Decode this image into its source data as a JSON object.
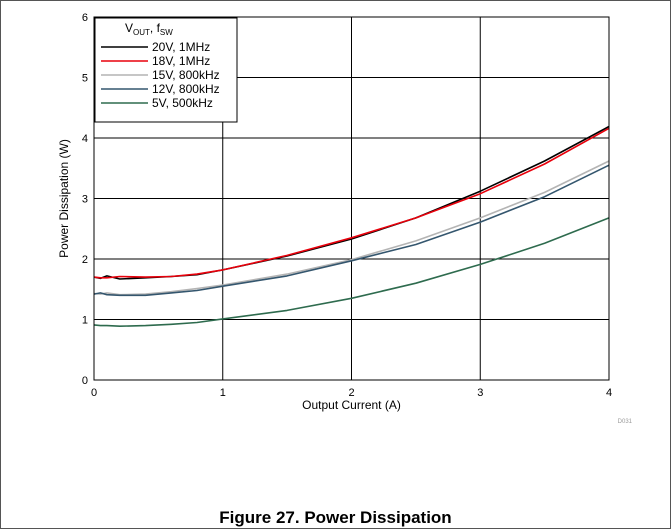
{
  "caption": "Figure 27. Power Dissipation",
  "chart_code": "D031",
  "chart_data": {
    "type": "line",
    "title": "",
    "xlabel": "Output Current (A)",
    "ylabel": "Power Dissipation (W)",
    "xlim": [
      0,
      4
    ],
    "ylim": [
      0,
      6
    ],
    "xticks": [
      "0",
      "1",
      "2",
      "3",
      "4"
    ],
    "yticks": [
      "0",
      "1",
      "2",
      "3",
      "4",
      "5",
      "6"
    ],
    "grid": true,
    "legend_position": "top-left",
    "legend_title": {
      "main": "V",
      "sub1": "OUT",
      "mid": ", f",
      "sub2": "SW"
    },
    "series": [
      {
        "name": "20V, 1MHz",
        "color": "#000000",
        "x": [
          0,
          0.05,
          0.1,
          0.2,
          0.4,
          0.6,
          0.8,
          1.0,
          1.5,
          2.0,
          2.5,
          3.0,
          3.5,
          4.0
        ],
        "y": [
          1.7,
          1.68,
          1.72,
          1.67,
          1.69,
          1.71,
          1.74,
          1.82,
          2.05,
          2.33,
          2.68,
          3.12,
          3.62,
          4.19
        ]
      },
      {
        "name": "18V, 1MHz",
        "color": "#e8000b",
        "x": [
          0,
          0.05,
          0.1,
          0.2,
          0.4,
          0.6,
          0.8,
          1.0,
          1.5,
          2.0,
          2.5,
          3.0,
          3.5,
          4.0
        ],
        "y": [
          1.7,
          1.69,
          1.69,
          1.71,
          1.7,
          1.71,
          1.75,
          1.82,
          2.06,
          2.35,
          2.68,
          3.08,
          3.57,
          4.16
        ]
      },
      {
        "name": "15V, 800kHz",
        "color": "#b4b4b4",
        "x": [
          0,
          0.05,
          0.1,
          0.2,
          0.4,
          0.6,
          0.8,
          1.0,
          1.5,
          2.0,
          2.5,
          3.0,
          3.5,
          4.0
        ],
        "y": [
          1.43,
          1.42,
          1.44,
          1.41,
          1.42,
          1.46,
          1.51,
          1.57,
          1.75,
          1.99,
          2.3,
          2.68,
          3.1,
          3.62
        ]
      },
      {
        "name": "12V, 800kHz",
        "color": "#34566e",
        "x": [
          0,
          0.05,
          0.1,
          0.2,
          0.4,
          0.6,
          0.8,
          1.0,
          1.5,
          2.0,
          2.5,
          3.0,
          3.5,
          4.0
        ],
        "y": [
          1.42,
          1.44,
          1.41,
          1.4,
          1.4,
          1.44,
          1.48,
          1.55,
          1.72,
          1.97,
          2.24,
          2.61,
          3.03,
          3.55
        ]
      },
      {
        "name": "5V, 500kHz",
        "color": "#2e6b4e",
        "x": [
          0,
          0.05,
          0.1,
          0.2,
          0.4,
          0.6,
          0.8,
          1.0,
          1.5,
          2.0,
          2.5,
          3.0,
          3.5,
          4.0
        ],
        "y": [
          0.91,
          0.9,
          0.9,
          0.89,
          0.9,
          0.92,
          0.95,
          1.01,
          1.15,
          1.35,
          1.6,
          1.91,
          2.26,
          2.68
        ]
      }
    ]
  }
}
